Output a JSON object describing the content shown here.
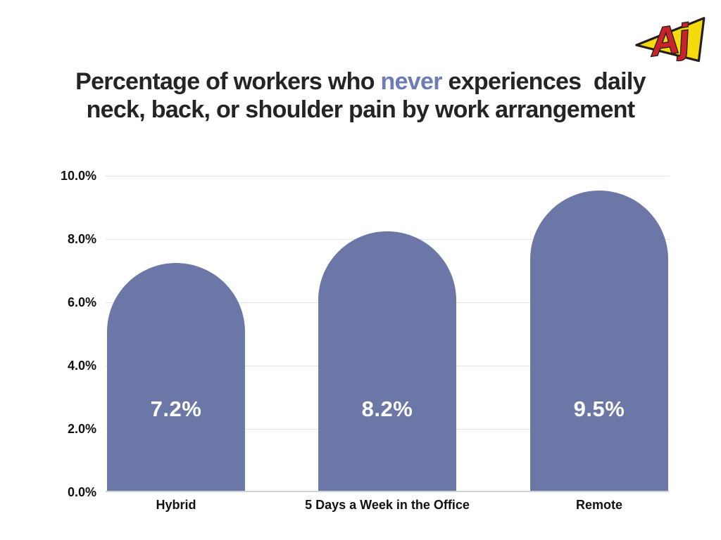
{
  "logo": {
    "letters": "Aj",
    "arrow_color": "#F6DB0C",
    "letters_color": "#C9232A",
    "outline_color": "#231F20"
  },
  "title": {
    "line1_before": "Percentage of workers who ",
    "highlight": "never",
    "line1_after": " experiences  daily",
    "line2": "neck, back, or shoulder pain by work arrangement",
    "text_color": "#242424",
    "highlight_color": "#6B7CB8"
  },
  "chart_data": {
    "type": "bar",
    "title": "Percentage of workers who never experiences daily neck, back, or shoulder pain by work arrangement",
    "categories": [
      "Hybrid",
      "5 Days a Week in the Office",
      "Remote"
    ],
    "values": [
      7.2,
      8.2,
      9.5
    ],
    "value_labels": [
      "7.2%",
      "8.2%",
      "9.5%"
    ],
    "yticks": [
      "10.0%",
      "8.0%",
      "6.0%",
      "4.0%",
      "2.0%",
      "0.0%"
    ],
    "ylim": [
      0,
      10
    ],
    "xlabel": "",
    "ylabel": "",
    "grid": true,
    "legend": "none",
    "bar_color": "#6B77A6",
    "gridline_color": "#E4E4E4",
    "axis_line_color": "#D2D2D2",
    "value_label_color": "#FFFFFF",
    "tick_label_color": "#111111"
  }
}
